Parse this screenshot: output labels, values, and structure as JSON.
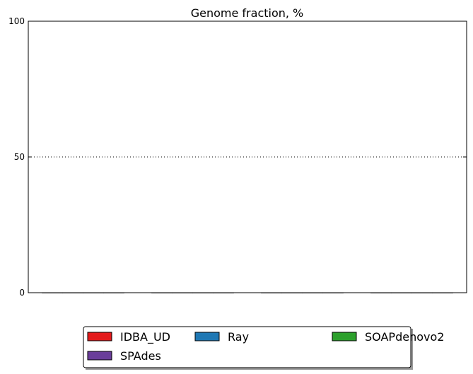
{
  "chart_data": {
    "type": "bar",
    "title": "Genome fraction, %",
    "xlabel": "",
    "ylabel": "",
    "ylim": [
      0,
      100
    ],
    "yticks": [
      0,
      50,
      100
    ],
    "grid": "horizontal-dotted",
    "categories": [
      "",
      "",
      "",
      ""
    ],
    "series": [
      {
        "name": "IDBA_UD",
        "color": "#e41a1c",
        "values": [
          0,
          0,
          0,
          0
        ]
      },
      {
        "name": "Ray",
        "color": "#1f78b4",
        "values": [
          0,
          0,
          0,
          0
        ]
      },
      {
        "name": "SOAPdenovo2",
        "color": "#2ca02c",
        "values": [
          0,
          0,
          0,
          0
        ]
      },
      {
        "name": "SPAdes",
        "color": "#6a3d9a",
        "values": [
          0,
          0,
          0,
          0
        ]
      }
    ],
    "legend": {
      "placement": "bottom-center",
      "columns": 3
    }
  }
}
